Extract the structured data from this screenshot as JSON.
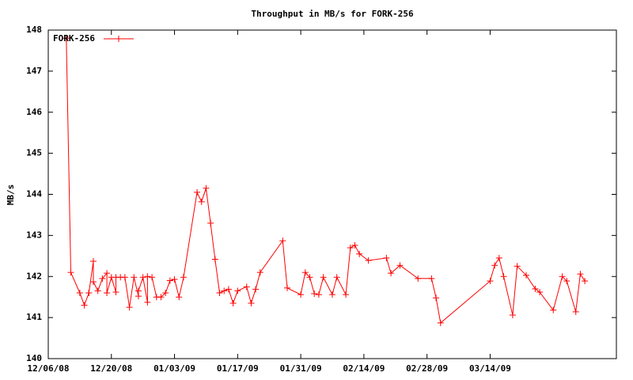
{
  "chart_data": {
    "type": "line",
    "title": "Throughput in MB/s for FORK-256",
    "y_label": "MB/s",
    "x": [
      "12/10/08",
      "12/11/08",
      "12/13/08",
      "12/14/08",
      "12/15/08",
      "12/15/08",
      "12/16/08",
      "12/16/08",
      "12/17/08",
      "12/18/08",
      "12/19/08",
      "12/19/08",
      "12/20/08",
      "12/21/08",
      "12/21/08",
      "12/22/08",
      "12/23/08",
      "12/24/08",
      "12/25/08",
      "12/26/08",
      "12/26/08",
      "12/27/08",
      "12/28/08",
      "12/28/08",
      "12/29/08",
      "12/30/08",
      "12/31/08",
      "01/01/09",
      "01/02/09",
      "01/03/09",
      "01/04/09",
      "01/05/09",
      "01/08/09",
      "01/09/09",
      "01/10/09",
      "01/11/09",
      "01/12/09",
      "01/13/09",
      "01/14/09",
      "01/15/09",
      "01/16/09",
      "01/17/09",
      "01/19/09",
      "01/20/09",
      "01/21/09",
      "01/22/09",
      "01/27/09",
      "01/28/09",
      "01/31/09",
      "02/01/09",
      "02/02/09",
      "02/03/09",
      "02/04/09",
      "02/05/09",
      "02/07/09",
      "02/08/09",
      "02/10/09",
      "02/11/09",
      "02/12/09",
      "02/13/09",
      "02/15/09",
      "02/19/09",
      "02/20/09",
      "02/22/09",
      "02/26/09",
      "03/01/09",
      "03/02/09",
      "03/03/09",
      "03/14/09",
      "03/15/09",
      "03/16/09",
      "03/17/09",
      "03/19/09",
      "03/20/09",
      "03/22/09",
      "03/24/09",
      "03/25/09",
      "03/28/09",
      "03/30/09",
      "03/31/09",
      "04/02/09",
      "04/03/09",
      "04/04/09"
    ],
    "series": [
      {
        "name": "FORK-256",
        "color": "#ff0000",
        "values": [
          147.8,
          142.1,
          141.6,
          141.3,
          141.6,
          141.6,
          142.37,
          141.87,
          141.65,
          141.95,
          142.08,
          141.6,
          141.98,
          141.62,
          141.98,
          141.98,
          141.98,
          141.25,
          141.98,
          141.52,
          141.65,
          141.98,
          141.37,
          142.0,
          141.98,
          141.5,
          141.5,
          141.6,
          141.9,
          141.93,
          141.5,
          141.98,
          144.05,
          143.82,
          144.15,
          143.3,
          142.42,
          141.6,
          141.65,
          141.69,
          141.35,
          141.65,
          141.75,
          141.35,
          141.69,
          142.1,
          142.87,
          141.72,
          141.56,
          142.1,
          141.98,
          141.58,
          141.56,
          141.98,
          141.56,
          141.98,
          141.56,
          142.7,
          142.76,
          142.55,
          142.39,
          142.45,
          142.08,
          142.27,
          141.95,
          141.95,
          141.48,
          140.87,
          141.89,
          142.27,
          142.45,
          142.0,
          141.06,
          142.25,
          142.03,
          141.7,
          141.62,
          141.18,
          142.0,
          141.89,
          141.14,
          142.06,
          141.89
        ]
      }
    ],
    "xlim": [
      "12/06/08",
      "04/11/09"
    ],
    "xticks": [
      "12/06/08",
      "12/20/08",
      "01/03/09",
      "01/17/09",
      "01/31/09",
      "02/14/09",
      "02/28/09",
      "03/14/09"
    ],
    "ylim": [
      140,
      148
    ],
    "yticks": [
      140,
      141,
      142,
      143,
      144,
      145,
      146,
      147,
      148
    ],
    "legend": "top-left"
  }
}
